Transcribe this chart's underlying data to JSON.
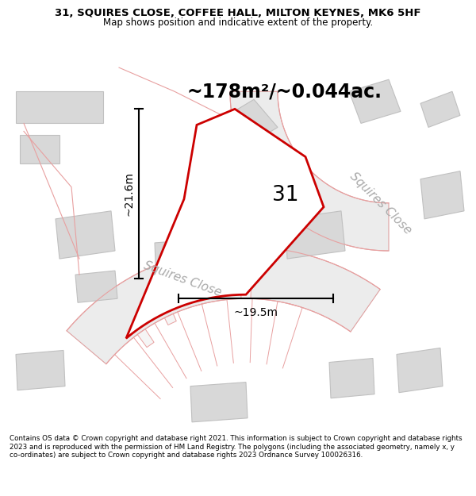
{
  "title": "31, SQUIRES CLOSE, COFFEE HALL, MILTON KEYNES, MK6 5HF",
  "subtitle": "Map shows position and indicative extent of the property.",
  "area_text": "~178m²/~0.044ac.",
  "width_label": "~19.5m",
  "height_label": "~21.6m",
  "number_label": "31",
  "road_label_bottom": "Squires Close",
  "road_label_right": "Squires Close",
  "footer": "Contains OS data © Crown copyright and database right 2021. This information is subject to Crown copyright and database rights 2023 and is reproduced with the permission of HM Land Registry. The polygons (including the associated geometry, namely x, y co-ordinates) are subject to Crown copyright and database rights 2023 Ordnance Survey 100026316.",
  "bg_color": "#f5f5f5",
  "plot_fill": "#f0f0f0",
  "plot_edge": "#cc0000",
  "road_fill": "#e8e8e8",
  "road_edge": "#e8a0a0",
  "building_fill": "#d8d8d8",
  "building_edge": "#c8c8c8",
  "light_pink": "#f0b0b0",
  "gray_road": "#d0d0d0"
}
